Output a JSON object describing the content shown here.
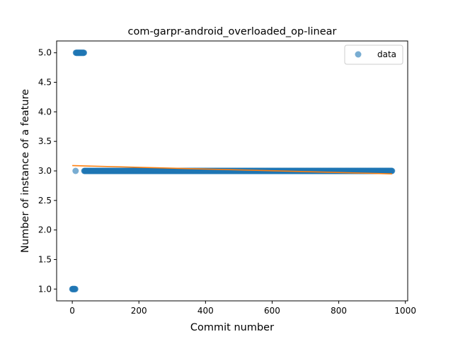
{
  "chart_data": {
    "type": "scatter",
    "title": "com-garpr-android_overloaded_op-linear",
    "xlabel": "Commit number",
    "ylabel": "Number of instance of a feature",
    "xlim": [
      -47,
      1007
    ],
    "ylim": [
      0.8,
      5.2
    ],
    "xticks": [
      0,
      200,
      400,
      600,
      800,
      1000
    ],
    "yticks": [
      1.0,
      1.5,
      2.0,
      2.5,
      3.0,
      3.5,
      4.0,
      4.5,
      5.0
    ],
    "xtick_labels": [
      "0",
      "200",
      "400",
      "600",
      "800",
      "1000"
    ],
    "ytick_labels": [
      "1.0",
      "1.5",
      "2.0",
      "2.5",
      "3.0",
      "3.5",
      "4.0",
      "4.5",
      "5.0"
    ],
    "grid": false,
    "legend": {
      "position": "top-right",
      "entries": [
        "data"
      ]
    },
    "colors": {
      "data": "#1f77b4",
      "fit": "#ff7f0e"
    },
    "series": [
      {
        "name": "data",
        "kind": "scatter",
        "segments": [
          {
            "x_from": 0,
            "x_to": 9,
            "y": 1.0
          },
          {
            "x_from": 10,
            "x_to": 10,
            "y": 3.0
          },
          {
            "x_from": 11,
            "x_to": 35,
            "y": 5.0
          },
          {
            "x_from": 36,
            "x_to": 960,
            "y": 3.0
          }
        ]
      },
      {
        "kind": "line",
        "x": [
          0,
          960
        ],
        "y": [
          3.09,
          2.95
        ]
      }
    ]
  }
}
